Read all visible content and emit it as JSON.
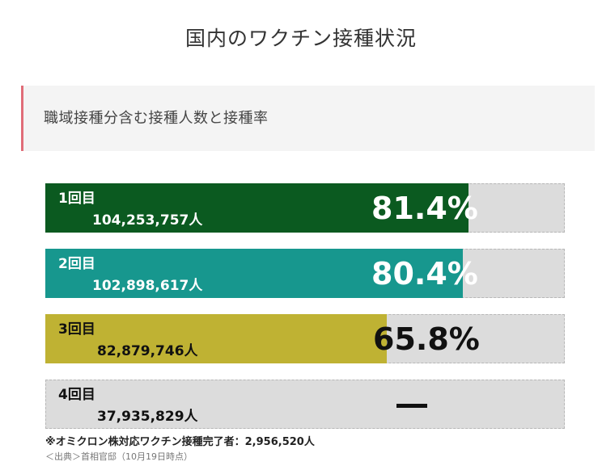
{
  "page": {
    "title": "国内のワクチン接種状況",
    "subtitle": "職域接種分含む接種人数と接種率",
    "note": "※オミクロン株対応ワクチン接種完了者：2,956,520人",
    "source": "＜出典＞首相官邸（10月19日時点）"
  },
  "colors": {
    "dose1": "#0b5a20",
    "dose2": "#17978e",
    "dose3": "#bfb233",
    "track": "#dcdcdc",
    "accent": "#e06d78"
  },
  "chart_data": {
    "type": "bar",
    "orientation": "horizontal",
    "categories": [
      "1回目",
      "2回目",
      "3回目",
      "4回目"
    ],
    "people_labels": [
      "104,253,757人",
      "102,898,617人",
      "82,879,746人",
      "37,935,829人"
    ],
    "values": [
      81.4,
      80.4,
      65.8,
      null
    ],
    "value_labels": [
      "81.4%",
      "80.4%",
      "65.8%",
      "ー"
    ],
    "xlim": [
      0,
      100
    ]
  }
}
